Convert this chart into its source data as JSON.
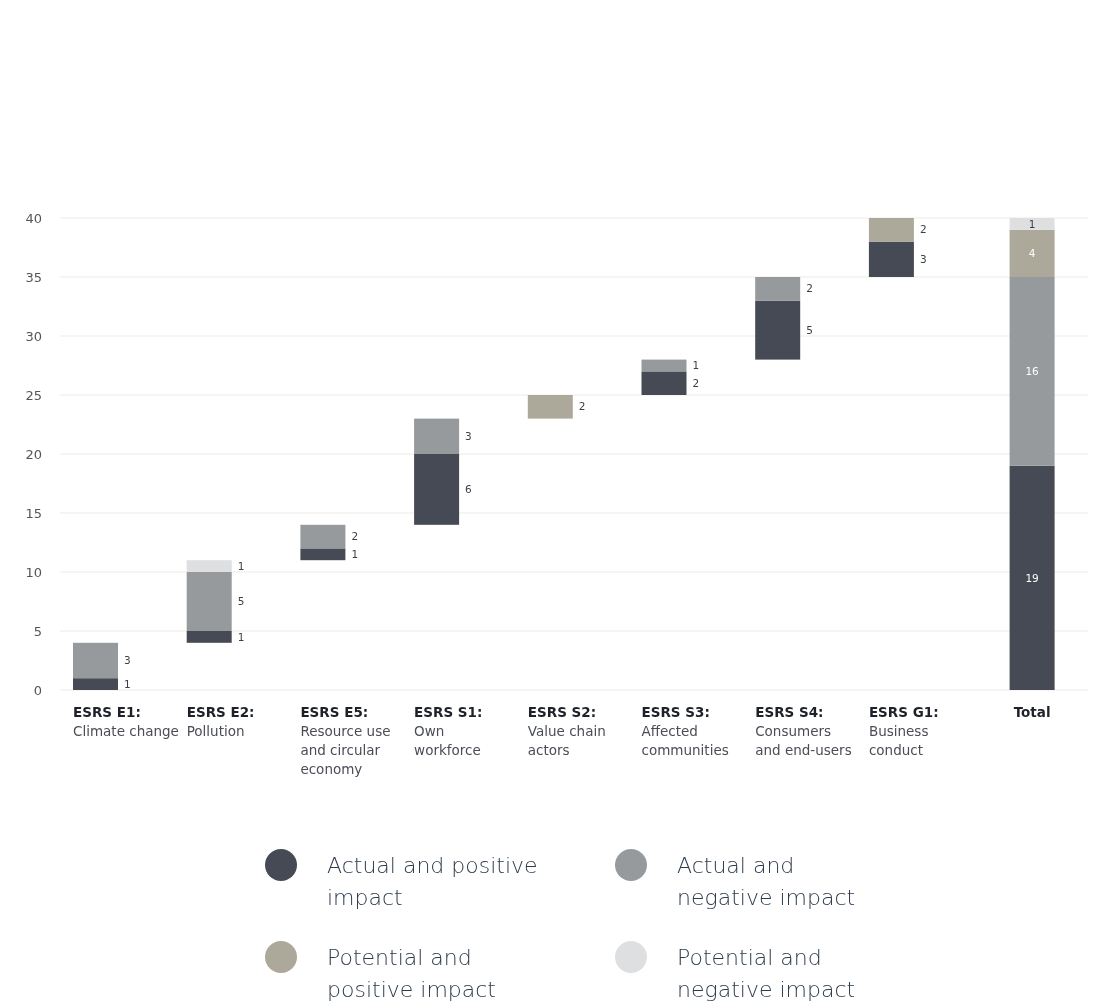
{
  "chart_data": {
    "type": "bar",
    "categories": [
      "ESRS E1:\nClimate change",
      "ESRS E2:\nPollution",
      "ESRS E5:\nResource use\nand circular\neconomy",
      "ESRS S1:\nOwn\nworkforce",
      "ESRS S2:\nValue chain\nactors",
      "ESRS S3:\nAffected\ncommunities",
      "ESRS S4:\nConsumers\nand end-users",
      "ESRS G1:\nBusiness\nconduct",
      "Total"
    ],
    "series": [
      {
        "name": "Actual and positive\nimpact",
        "color": "#464a54",
        "values": [
          1,
          1,
          1,
          6,
          null,
          2,
          5,
          3,
          19
        ],
        "base": [
          0,
          4,
          11,
          14,
          null,
          25,
          28,
          35,
          0
        ]
      },
      {
        "name": "Actual and\nnegative impact",
        "color": "#979a9d",
        "values": [
          3,
          5,
          2,
          3,
          null,
          1,
          2,
          null,
          16
        ],
        "base": [
          1,
          5,
          12,
          20,
          null,
          27,
          33,
          null,
          19
        ]
      },
      {
        "name": "Potential and\npositive impact",
        "color": "#aca99a",
        "values": [
          null,
          null,
          null,
          null,
          2,
          null,
          null,
          2,
          4
        ],
        "base": [
          null,
          null,
          null,
          null,
          23,
          null,
          null,
          38,
          35
        ]
      },
      {
        "name": "Potential and\nnegative impact",
        "color": "#dedfe1",
        "values": [
          null,
          1,
          null,
          null,
          null,
          null,
          null,
          null,
          1
        ],
        "base": [
          null,
          10,
          null,
          null,
          null,
          null,
          null,
          null,
          39
        ]
      }
    ],
    "ylim": [
      0,
      40
    ],
    "yticks": [
      0,
      5,
      10,
      15,
      20,
      25,
      30,
      35,
      40
    ],
    "grid": "y",
    "data_labels": true,
    "legend": "bottom"
  }
}
